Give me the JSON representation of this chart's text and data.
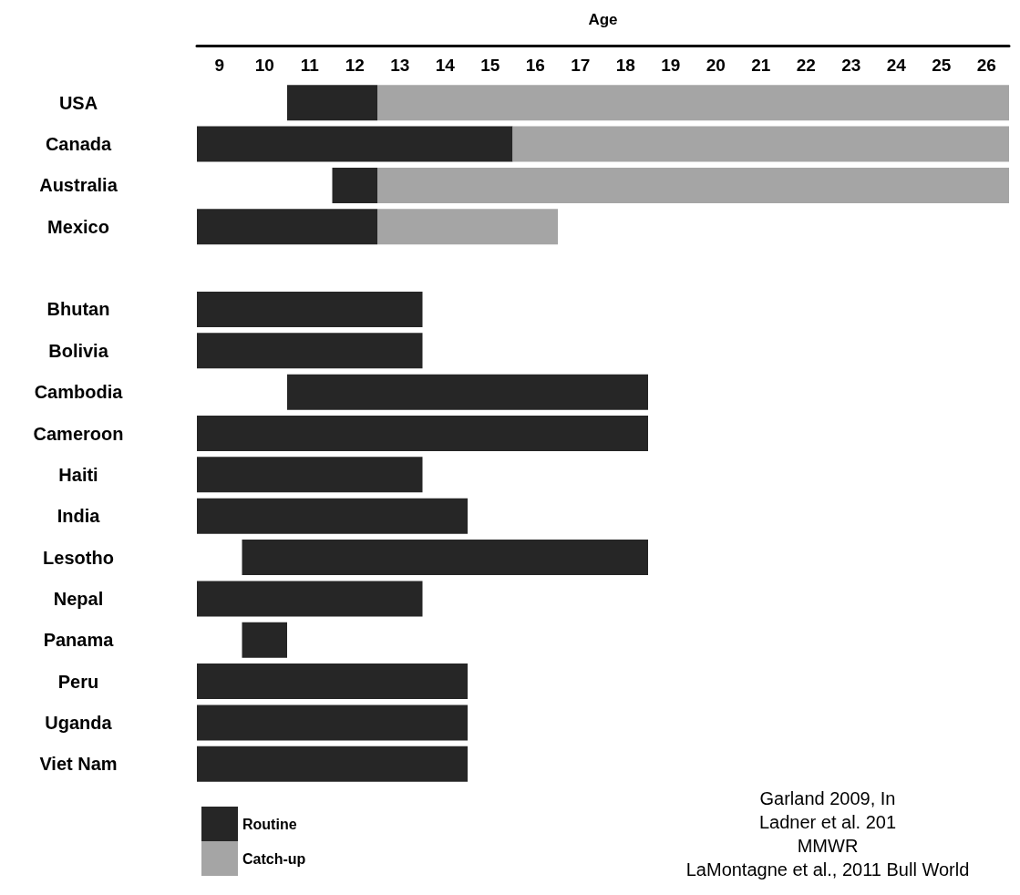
{
  "chart_data": {
    "type": "bar",
    "orientation": "horizontal",
    "xlabel": "Age",
    "categories": [
      "USA",
      "Canada",
      "Australia",
      "Mexico",
      null,
      "Bhutan",
      "Bolivia",
      "Cambodia",
      "Cameroon",
      "Haiti",
      "India",
      "Lesotho",
      "Nepal",
      "Panama",
      "Peru",
      "Uganda",
      "Viet Nam"
    ],
    "series": [
      {
        "name": "Routine",
        "color": "#262626",
        "base": [
          10.5,
          8.5,
          11.5,
          8.5,
          null,
          8.5,
          8.5,
          10.5,
          8.5,
          8.5,
          8.5,
          9.5,
          8.5,
          9.5,
          8.5,
          8.5,
          8.5
        ],
        "values": [
          2,
          7,
          1,
          4,
          null,
          5,
          5,
          8,
          10,
          5,
          6,
          9,
          5,
          1,
          6,
          6,
          6
        ]
      },
      {
        "name": "Catch-up",
        "color": "#a5a5a5",
        "base": [
          12.5,
          15.5,
          12.5,
          12.5,
          null,
          null,
          null,
          null,
          null,
          null,
          null,
          null,
          null,
          null,
          null,
          null,
          null
        ],
        "values": [
          14,
          11,
          14,
          4,
          null,
          null,
          null,
          null,
          null,
          null,
          null,
          null,
          null,
          null,
          null,
          null,
          null
        ]
      }
    ],
    "xlim": [
      8.5,
      26.5
    ],
    "xticks": [
      9,
      10,
      11,
      12,
      13,
      14,
      15,
      16,
      17,
      18,
      19,
      20,
      21,
      22,
      23,
      24,
      25,
      26
    ],
    "grid": false,
    "legend": "bottom left",
    "annotations": [
      "Garland 2009, In",
      "Ladner et al. 201",
      "MMWR",
      "LaMontagne et al., 2011 Bull World"
    ]
  }
}
